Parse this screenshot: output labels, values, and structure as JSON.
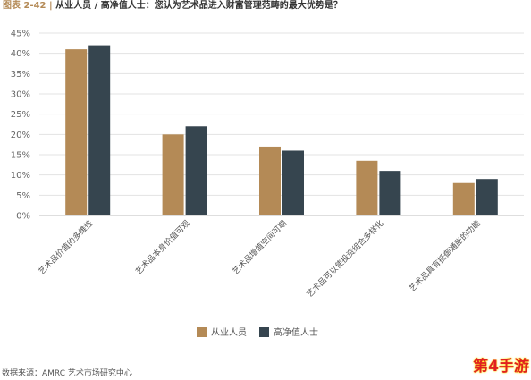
{
  "header": {
    "figure_no": "图表 2-42",
    "separator": "|",
    "title": "从业人员 / 高净值人士：您认为艺术品进入财富管理范畴的最大优势是？"
  },
  "chart_data": {
    "type": "bar",
    "categories": [
      "艺术品价值的多维性",
      "艺术品本身价值可观",
      "艺术品增值空间可期",
      "艺术品可以使投资组合多样化",
      "艺术品具有抵御通胀的功能"
    ],
    "series": [
      {
        "name": "从业人员",
        "color": "#b48a56",
        "values": [
          41,
          20,
          17,
          13.5,
          8
        ]
      },
      {
        "name": "高净值人士",
        "color": "#36454f",
        "values": [
          42,
          22,
          16,
          11,
          9
        ]
      }
    ],
    "y_ticks": [
      "0%",
      "5%",
      "10%",
      "15%",
      "20%",
      "25%",
      "30%",
      "35%",
      "40%",
      "45%"
    ],
    "ylim": [
      0,
      45
    ],
    "grid": true,
    "legend_position": "bottom-center",
    "xlabel": "",
    "ylabel": ""
  },
  "source": "数据来源：AMRC 艺术市场研究中心",
  "watermark": "第4手游"
}
